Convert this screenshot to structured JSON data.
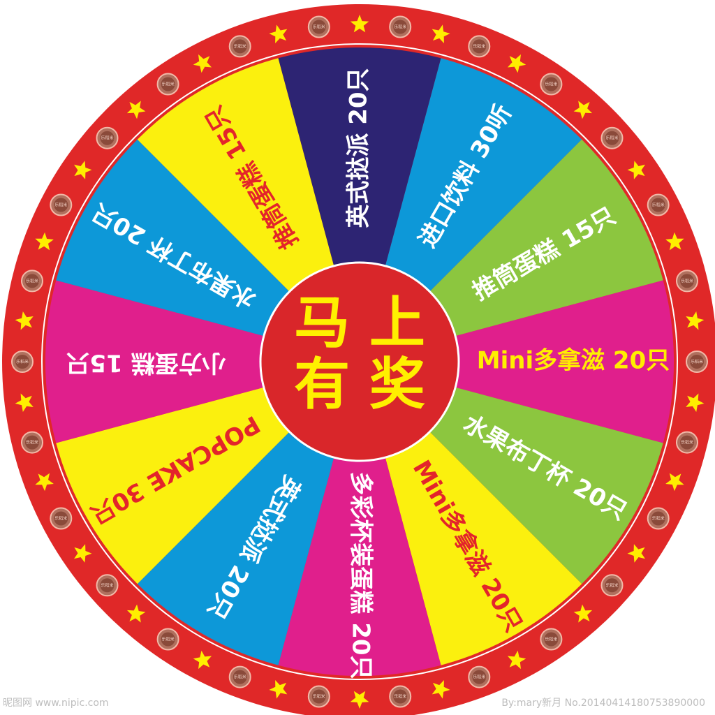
{
  "wheel": {
    "hub": {
      "line1": "马 上",
      "line2": "有 奖"
    },
    "segments": [
      {
        "label": "进口饮料 30听",
        "color": "#0d98d8",
        "text_color": "#ffffff"
      },
      {
        "label": "推筒蛋糕 15只",
        "color": "#8cc63f",
        "text_color": "#ffffff"
      },
      {
        "label": "Mini多拿滋 20只",
        "color": "#e01f8c",
        "text_color": "#ffee00"
      },
      {
        "label": "水果布丁杯 20只",
        "color": "#8cc63f",
        "text_color": "#ffffff"
      },
      {
        "label": "Mini多拿滋 20只",
        "color": "#fbf00e",
        "text_color": "#e3242b"
      },
      {
        "label": "多彩杯装蛋糕 20只",
        "color": "#e01f8c",
        "text_color": "#ffffff"
      },
      {
        "label": "英式挞派 20只",
        "color": "#0d98d8",
        "text_color": "#ffffff"
      },
      {
        "label": "POPCAKE 30只",
        "color": "#fbf00e",
        "text_color": "#e3242b"
      },
      {
        "label": "小方蛋糕 15只",
        "color": "#e01f8c",
        "text_color": "#ffffff"
      },
      {
        "label": "水果布丁杯 20只",
        "color": "#0d98d8",
        "text_color": "#ffffff"
      },
      {
        "label": "推筒蛋糕 15只",
        "color": "#fbf00e",
        "text_color": "#e3242b"
      },
      {
        "label": "英式挞派 20只",
        "color": "#2d2473",
        "text_color": "#ffffff"
      }
    ],
    "bulb_text": "乐稻米",
    "colors": {
      "rim": "#e02828",
      "hub": "#d9262a",
      "hub_text": "#fff000",
      "star": "#ffee00",
      "bulb": "#8a4a3a"
    }
  },
  "watermark": {
    "left": "昵图网 www.nipic.com",
    "right": "By:mary新月 No.20140414180753890000"
  }
}
